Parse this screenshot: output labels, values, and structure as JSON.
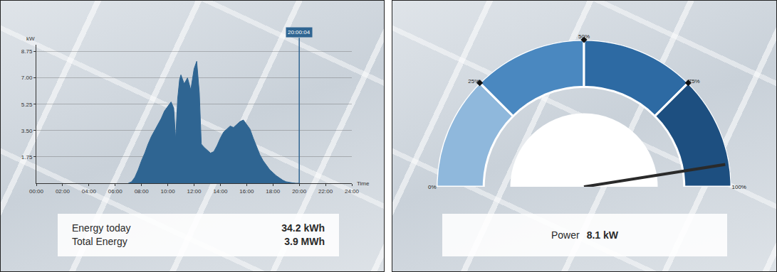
{
  "chart_data": [
    {
      "type": "area",
      "x_label": "Time",
      "y_label": "kW",
      "color": "#2f6592",
      "x": [
        7.0,
        7.25,
        7.5,
        7.75,
        8.0,
        8.25,
        8.5,
        8.75,
        9.0,
        9.25,
        9.5,
        9.75,
        10.0,
        10.25,
        10.45,
        10.6,
        10.75,
        10.9,
        11.0,
        11.25,
        11.5,
        11.75,
        12.0,
        12.2,
        12.4,
        12.55,
        12.75,
        13.0,
        13.25,
        13.5,
        13.75,
        14.0,
        14.25,
        14.5,
        14.75,
        15.0,
        15.25,
        15.5,
        15.75,
        16.0,
        16.25,
        16.5,
        16.75,
        17.0,
        17.25,
        17.5,
        17.75,
        18.0,
        18.25,
        18.5,
        18.75,
        19.0,
        19.25,
        19.5,
        19.75,
        20.0
      ],
      "values": [
        0,
        0.1,
        0.4,
        0.9,
        1.5,
        2.0,
        2.6,
        3.1,
        3.5,
        3.9,
        4.3,
        4.8,
        5.1,
        5.4,
        5.0,
        2.9,
        5.6,
        6.9,
        7.2,
        6.6,
        7.0,
        6.2,
        7.6,
        8.1,
        6.0,
        2.6,
        2.4,
        2.2,
        2.0,
        2.1,
        2.5,
        3.0,
        3.4,
        3.6,
        3.8,
        3.7,
        3.9,
        4.1,
        4.2,
        3.9,
        3.6,
        3.0,
        2.4,
        1.9,
        1.5,
        1.2,
        0.9,
        0.7,
        0.5,
        0.35,
        0.2,
        0.1,
        0.05,
        0.02,
        0,
        0
      ],
      "xlim": [
        0,
        24
      ],
      "xticks": [
        {
          "value": 0,
          "label": "00:00"
        },
        {
          "value": 2,
          "label": "02:00"
        },
        {
          "value": 4,
          "label": "04:00"
        },
        {
          "value": 6,
          "label": "06:00"
        },
        {
          "value": 8,
          "label": "08:00"
        },
        {
          "value": 10,
          "label": "10:00"
        },
        {
          "value": 12,
          "label": "12:00"
        },
        {
          "value": 14,
          "label": "14:00"
        },
        {
          "value": 16,
          "label": "16:00"
        },
        {
          "value": 18,
          "label": "18:00"
        },
        {
          "value": 20,
          "label": "20:00"
        },
        {
          "value": 22,
          "label": "22:00"
        },
        {
          "value": 24,
          "label": "24:00"
        }
      ],
      "ylim": [
        0,
        9.2
      ],
      "yticks": [
        1.75,
        {
          "value": 3.5,
          "label": "3.50"
        },
        5.25,
        {
          "value": 7,
          "label": "7.00"
        },
        8.75
      ],
      "grid": true,
      "annotations": [
        {
          "x": 20,
          "text": "20:00:04"
        }
      ],
      "summary": [
        {
          "label": "Energy today",
          "value": "34.2 kWh"
        },
        {
          "label": "Total Energy",
          "value": "3.9 MWh"
        }
      ]
    },
    {
      "type": "gauge",
      "value": 95,
      "range": [
        0,
        100
      ],
      "ticks": [
        {
          "value": 0,
          "label": "0%"
        },
        {
          "value": 25,
          "label": "25%"
        },
        {
          "value": 50,
          "label": "50%"
        },
        {
          "value": 75,
          "label": "75%"
        },
        {
          "value": 100,
          "label": "100%"
        }
      ],
      "colors": [
        "#8fb8dc",
        "#4a88c0",
        "#2d6aa3",
        "#1d4f80"
      ],
      "summary": [
        {
          "label": "Power",
          "value": "8.1 kW"
        }
      ]
    }
  ]
}
